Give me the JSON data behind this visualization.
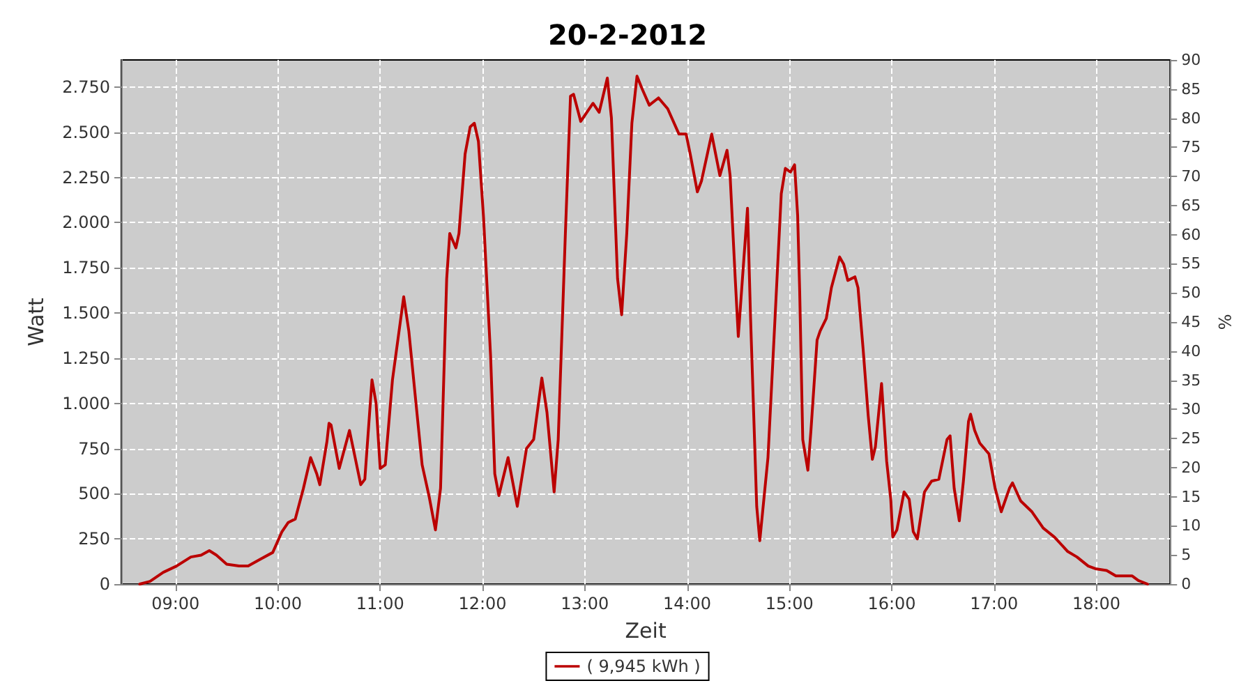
{
  "chart_data": {
    "type": "line",
    "title": "20-2-2012",
    "xlabel": "Zeit",
    "ylabel": "Watt",
    "y2label": "%",
    "x": [
      8.65,
      8.75,
      8.88,
      9.01,
      9.15,
      9.25,
      9.33,
      9.4,
      9.5,
      9.62,
      9.71,
      9.82,
      9.95,
      10.04,
      10.1,
      10.17,
      10.25,
      10.32,
      10.38,
      10.41,
      10.48,
      10.5,
      10.52,
      10.6,
      10.7,
      10.81,
      10.85,
      10.92,
      10.96,
      11.0,
      11.05,
      11.12,
      11.23,
      11.28,
      11.35,
      11.41,
      11.48,
      11.54,
      11.59,
      11.65,
      11.68,
      11.74,
      11.77,
      11.83,
      11.88,
      11.92,
      11.96,
      12.01,
      12.08,
      12.12,
      12.16,
      12.25,
      12.34,
      12.43,
      12.5,
      12.58,
      12.63,
      12.7,
      12.74,
      12.81,
      12.86,
      12.89,
      12.96,
      13.08,
      13.14,
      13.22,
      13.26,
      13.32,
      13.36,
      13.41,
      13.46,
      13.51,
      13.56,
      13.63,
      13.72,
      13.81,
      13.92,
      13.99,
      14.03,
      14.1,
      14.14,
      14.24,
      14.32,
      14.39,
      14.42,
      14.47,
      14.5,
      14.59,
      14.62,
      14.68,
      14.71,
      14.79,
      14.85,
      14.92,
      14.96,
      15.01,
      15.05,
      15.08,
      15.1,
      15.13,
      15.18,
      15.21,
      15.27,
      15.3,
      15.36,
      15.41,
      15.49,
      15.53,
      15.57,
      15.64,
      15.67,
      15.72,
      15.77,
      15.81,
      15.84,
      15.9,
      15.95,
      15.99,
      16.01,
      16.05,
      16.12,
      16.17,
      16.21,
      16.25,
      16.32,
      16.39,
      16.46,
      16.54,
      16.57,
      16.61,
      16.66,
      16.7,
      16.75,
      16.77,
      16.81,
      16.86,
      16.95,
      17.01,
      17.07,
      17.15,
      17.18,
      17.26,
      17.37,
      17.48,
      17.59,
      17.72,
      17.81,
      17.92,
      17.99,
      18.1,
      18.19,
      18.35,
      18.41,
      18.5
    ],
    "series": [
      {
        "name": "( 9,945 kWh )",
        "color": "#bb0000",
        "values": [
          0,
          15,
          65,
          100,
          150,
          160,
          185,
          160,
          110,
          100,
          100,
          135,
          175,
          290,
          340,
          360,
          530,
          700,
          610,
          550,
          790,
          890,
          880,
          640,
          850,
          550,
          580,
          1130,
          1000,
          640,
          660,
          1130,
          1590,
          1400,
          1000,
          660,
          480,
          300,
          530,
          1690,
          1940,
          1860,
          1940,
          2380,
          2530,
          2550,
          2450,
          2030,
          1250,
          610,
          490,
          700,
          430,
          750,
          800,
          1140,
          950,
          510,
          800,
          1940,
          2700,
          2710,
          2560,
          2660,
          2610,
          2800,
          2580,
          1690,
          1490,
          1940,
          2550,
          2810,
          2740,
          2650,
          2690,
          2630,
          2490,
          2490,
          2380,
          2170,
          2230,
          2490,
          2260,
          2400,
          2260,
          1690,
          1370,
          2080,
          1470,
          430,
          240,
          700,
          1370,
          2160,
          2300,
          2280,
          2320,
          2040,
          1620,
          800,
          630,
          850,
          1350,
          1400,
          1470,
          1640,
          1810,
          1770,
          1680,
          1700,
          1640,
          1300,
          930,
          690,
          760,
          1110,
          680,
          470,
          260,
          300,
          510,
          470,
          290,
          250,
          510,
          570,
          580,
          800,
          820,
          530,
          350,
          570,
          900,
          940,
          850,
          780,
          720,
          530,
          400,
          530,
          560,
          460,
          400,
          310,
          260,
          180,
          150,
          100,
          85,
          75,
          45,
          45,
          20,
          0
        ]
      }
    ],
    "xlim": [
      8.47,
      18.72
    ],
    "xticks": [
      {
        "value": 9,
        "label": "09:00"
      },
      {
        "value": 10,
        "label": "10:00"
      },
      {
        "value": 11,
        "label": "11:00"
      },
      {
        "value": 12,
        "label": "12:00"
      },
      {
        "value": 13,
        "label": "13:00"
      },
      {
        "value": 14,
        "label": "14:00"
      },
      {
        "value": 15,
        "label": "15:00"
      },
      {
        "value": 16,
        "label": "16:00"
      },
      {
        "value": 17,
        "label": "17:00"
      },
      {
        "value": 18,
        "label": "18:00"
      }
    ],
    "ylim": [
      0,
      2900
    ],
    "yticks": [
      0,
      250,
      500,
      750,
      {
        "value": 1000,
        "label": "1.000"
      },
      {
        "value": 1250,
        "label": "1.250"
      },
      {
        "value": 1500,
        "label": "1.500"
      },
      {
        "value": 1750,
        "label": "1.750"
      },
      {
        "value": 2000,
        "label": "2.000"
      },
      {
        "value": 2250,
        "label": "2.250"
      },
      {
        "value": 2500,
        "label": "2.500"
      },
      {
        "value": 2750,
        "label": "2.750"
      }
    ],
    "y2lim": [
      0,
      90
    ],
    "y2ticks": [
      0,
      5,
      10,
      15,
      20,
      25,
      30,
      35,
      40,
      45,
      50,
      55,
      60,
      65,
      70,
      75,
      80,
      85,
      90
    ],
    "grid": true,
    "legend": "bottom",
    "marker": "none",
    "line_style": "solid"
  }
}
